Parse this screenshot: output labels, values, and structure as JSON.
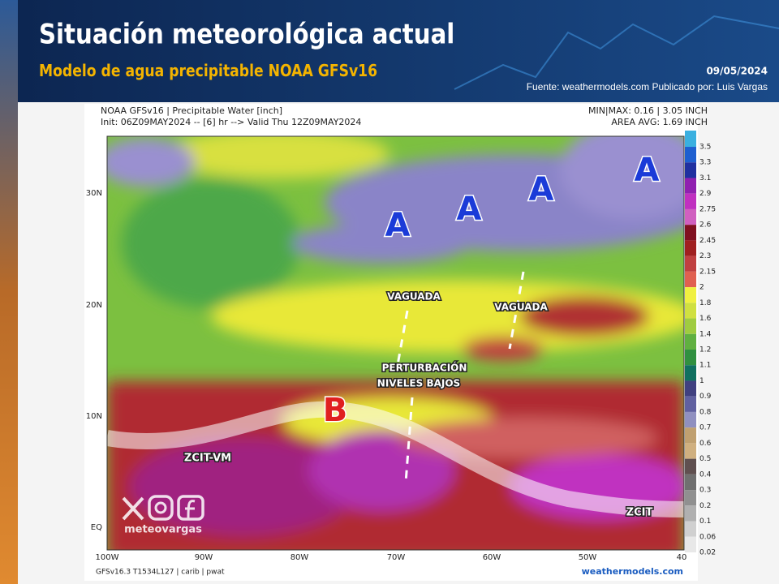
{
  "header": {
    "title": "Situación meteorológica actual",
    "subtitle": "Modelo de agua precipitable NOAA GFSv16",
    "date": "09/05/2024",
    "source": "Fuente: weathermodels.com  Publicado por: Luis Vargas"
  },
  "map": {
    "title_line1": "NOAA GFSv16 |  Precipitable Water [inch]",
    "title_line2": "Init: 06Z09MAY2024 -- [6] hr --> Valid Thu 12Z09MAY2024",
    "stats_line1": "MIN|MAX: 0.16 | 3.05 INCH",
    "stats_line2": "AREA AVG: 1.69 INCH",
    "lat_labels": [
      "30N",
      "20N",
      "10N",
      "EQ"
    ],
    "lon_labels": [
      "100W",
      "90W",
      "80W",
      "70W",
      "60W",
      "50W",
      "40"
    ],
    "footer_left": "GFSv16.3 T1534L127 | carib | pwat",
    "footer_right": "weathermodels.com",
    "colorbar": {
      "labels": [
        "3.5",
        "3.3",
        "3.1",
        "2.9",
        "2.75",
        "2.6",
        "2.45",
        "2.3",
        "2.15",
        "2",
        "1.8",
        "1.6",
        "1.4",
        "1.2",
        "1.1",
        "1",
        "0.9",
        "0.8",
        "0.7",
        "0.6",
        "0.5",
        "0.4",
        "0.3",
        "0.2",
        "0.1",
        "0.06",
        "0.02"
      ],
      "colors": [
        "#3ab0e0",
        "#1e5fd0",
        "#2030a0",
        "#9020b0",
        "#c030c0",
        "#d060c0",
        "#801020",
        "#a02020",
        "#c04040",
        "#e06050",
        "#f0f040",
        "#d0e040",
        "#a0cc40",
        "#60b040",
        "#309040",
        "#107060",
        "#404080",
        "#6060a0",
        "#9090c0",
        "#c0a070",
        "#d0b080",
        "#605050",
        "#707070",
        "#909090",
        "#b0b0b0",
        "#d0d0d0",
        "#e8e8e8"
      ]
    }
  },
  "annotations": {
    "highs": [
      "A",
      "A",
      "A",
      "A"
    ],
    "low": "B",
    "trough_1": "VAGUADA",
    "trough_2": "VAGUADA",
    "disturbance_line1": "PERTURBACIÓN",
    "disturbance_line2": "NIVELES BAJOS",
    "itcz_west": "ZCIT-VM",
    "itcz_east": "ZCIT"
  },
  "logo": {
    "text": "meteovargas"
  }
}
